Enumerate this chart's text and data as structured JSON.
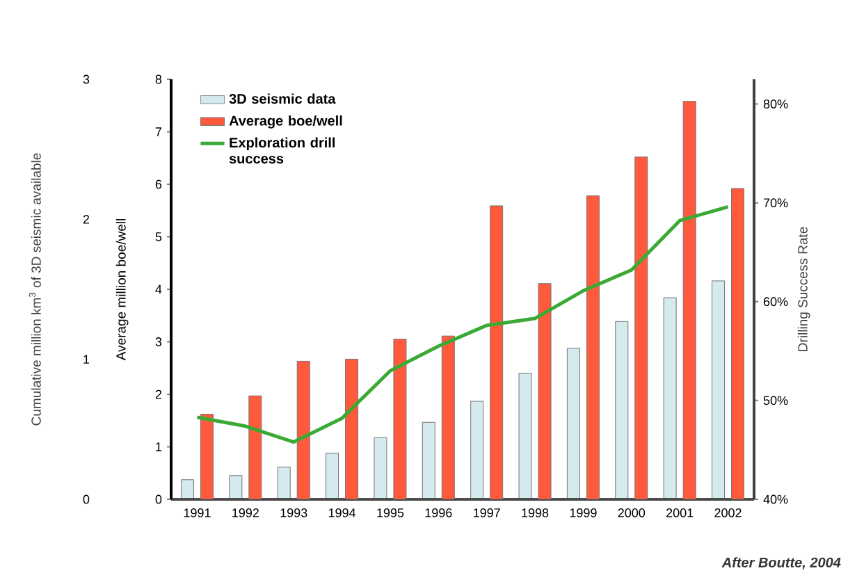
{
  "chart_data": {
    "type": "bar",
    "categories": [
      "1991",
      "1992",
      "1993",
      "1994",
      "1995",
      "1996",
      "1997",
      "1998",
      "1999",
      "2000",
      "2001",
      "2002"
    ],
    "series": [
      {
        "name": "3D seismic data",
        "axis": "y3",
        "color": "#d5eaee",
        "values": [
          0.14,
          0.17,
          0.23,
          0.33,
          0.44,
          0.55,
          0.7,
          0.9,
          1.08,
          1.27,
          1.44,
          1.56
        ]
      },
      {
        "name": "Average boe/well",
        "color": "#ff5a3c",
        "values": [
          1.62,
          1.97,
          2.63,
          2.67,
          3.05,
          3.11,
          5.59,
          4.11,
          5.78,
          6.52,
          7.58,
          5.92
        ]
      },
      {
        "name": "Exploration drill success",
        "type": "line",
        "axis": "y2",
        "color": "#3aaa35",
        "values": [
          48.3,
          47.4,
          45.8,
          48.2,
          53.0,
          55.5,
          57.6,
          58.3,
          61.1,
          63.2,
          68.2,
          69.6
        ]
      }
    ],
    "ylabel": "Average million boe/well",
    "y2label": "Drilling Success Rate",
    "y3label": "Cumulative million km$^{3}$ of 3D seismic available",
    "ylim": [
      0,
      8
    ],
    "yticks": [
      0,
      1,
      2,
      3,
      4,
      5,
      6,
      7,
      8
    ],
    "y2lim": [
      40,
      82.5
    ],
    "y2ticks": [
      {
        "value": 40,
        "label": "40%"
      },
      {
        "value": 50,
        "label": "50%"
      },
      {
        "value": 60,
        "label": "60%"
      },
      {
        "value": 70,
        "label": "70%"
      },
      {
        "value": 80,
        "label": "80%"
      }
    ],
    "y3lim": [
      0,
      3
    ],
    "y3ticks": [
      0,
      1,
      2,
      3
    ],
    "legend": "top left",
    "marker": "none",
    "annotations": [
      "After Boutte, 2004"
    ]
  }
}
